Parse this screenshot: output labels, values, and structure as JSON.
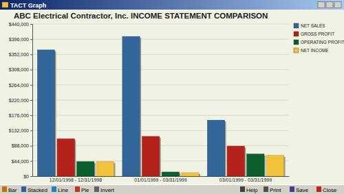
{
  "window": {
    "title": "TACT Graph",
    "toolbar": [
      "Bar",
      "Stacked",
      "Line",
      "Pie",
      "Invert",
      "Help",
      "Print",
      "Save",
      "Close"
    ]
  },
  "chart_data": {
    "type": "bar",
    "title": "ABC Electrical Contractor, Inc. INCOME STATEMENT COMPARISON",
    "categories": [
      "12/01/1998 - 12/31/1998",
      "01/01/1999 - 03/31/1999",
      "03/01/1999 - 03/31/1999"
    ],
    "series": [
      {
        "name": "NET SALES",
        "color": "#336699",
        "values": [
          365000,
          404000,
          162000
        ]
      },
      {
        "name": "GROSS PROFIT",
        "color": "#b5221c",
        "values": [
          108000,
          115000,
          87000
        ]
      },
      {
        "name": "OPERATING PROFIT",
        "color": "#0b5e2e",
        "values": [
          42000,
          12000,
          64000
        ]
      },
      {
        "name": "NET INCOME",
        "color": "#f2c33a",
        "values": [
          42000,
          10000,
          60000
        ]
      }
    ],
    "ylim": [
      0,
      440000
    ],
    "yticks": [
      {
        "value": 0,
        "label": "$0"
      },
      {
        "value": 44000,
        "label": "$44,000"
      },
      {
        "value": 88000,
        "label": "$88,000"
      },
      {
        "value": 132000,
        "label": "$132,000"
      },
      {
        "value": 176000,
        "label": "$176,000"
      },
      {
        "value": 220000,
        "label": "$220,000"
      },
      {
        "value": 264000,
        "label": "$264,000"
      },
      {
        "value": 308000,
        "label": "$308,000"
      },
      {
        "value": 352000,
        "label": "$352,000"
      },
      {
        "value": 396000,
        "label": "$396,000"
      },
      {
        "value": 440000,
        "label": "$440,000"
      }
    ],
    "grid": true,
    "legend": "right"
  }
}
